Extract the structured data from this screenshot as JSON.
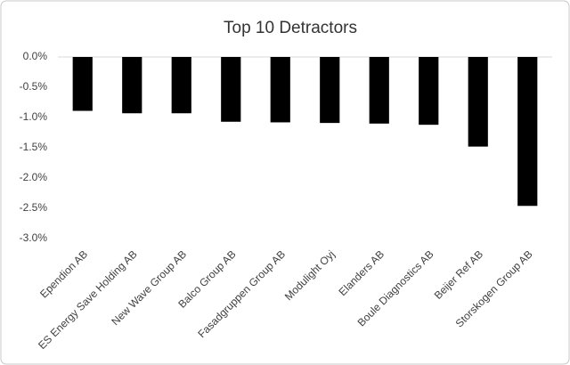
{
  "chart_data": {
    "type": "bar",
    "title": "Top 10 Detractors",
    "categories": [
      "Ependion AB",
      "ES Energy Save Holding AB",
      "New Wave Group AB",
      "Balco Group AB",
      "Fasadgruppen Group AB",
      "Modulight Oyj",
      "Elanders AB",
      "Boule Diagnostics AB",
      "Beijer Ref AB",
      "Storskogen Group AB"
    ],
    "values": [
      -0.89,
      -0.93,
      -0.93,
      -1.07,
      -1.08,
      -1.09,
      -1.1,
      -1.12,
      -1.48,
      -2.46
    ],
    "color": "#000000",
    "ylim": [
      -3,
      0
    ],
    "yticks": [
      {
        "value": 0,
        "label": "0.0%"
      },
      {
        "value": -0.5,
        "label": "-0.5%"
      },
      {
        "value": -1,
        "label": "-1.0%"
      },
      {
        "value": -1.5,
        "label": "-1.5%"
      },
      {
        "value": -2,
        "label": "-2.0%"
      },
      {
        "value": -2.5,
        "label": "-2.5%"
      },
      {
        "value": -3,
        "label": "-3.0%"
      }
    ],
    "grid": false
  }
}
